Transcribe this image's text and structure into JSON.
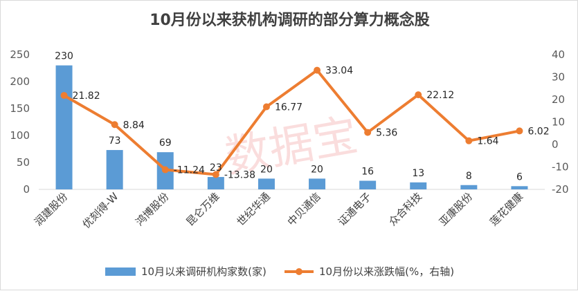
{
  "chart_data": {
    "type": "bar",
    "title": "10月份以来获机构调研的部分算力概念股",
    "categories": [
      "润建股份",
      "优刻得-W",
      "鸿博股份",
      "昆仑万维",
      "世纪华通",
      "中贝通信",
      "证通电子",
      "众合科技",
      "亚康股份",
      "莲花健康"
    ],
    "series": [
      {
        "name": "10月以来调研机构家数(家)",
        "type": "bar",
        "axis": "left",
        "values": [
          230,
          73,
          69,
          23,
          20,
          20,
          16,
          13,
          8,
          6
        ],
        "color": "#5b9bd5"
      },
      {
        "name": "10月份以来涨跌幅(%，右轴)",
        "type": "line",
        "axis": "right",
        "values": [
          21.82,
          8.84,
          -11.24,
          -13.38,
          16.77,
          33.04,
          5.36,
          22.12,
          1.64,
          6.02
        ],
        "color": "#ed7d31"
      }
    ],
    "ylim": [
      0,
      250
    ],
    "yticks": [
      0,
      50,
      100,
      150,
      200,
      250
    ],
    "y2lim": [
      -20,
      40
    ],
    "y2ticks": [
      -20,
      -10,
      0,
      10,
      20,
      30,
      40
    ],
    "legend_position": "bottom",
    "grid": false
  },
  "watermark": "数据宝"
}
